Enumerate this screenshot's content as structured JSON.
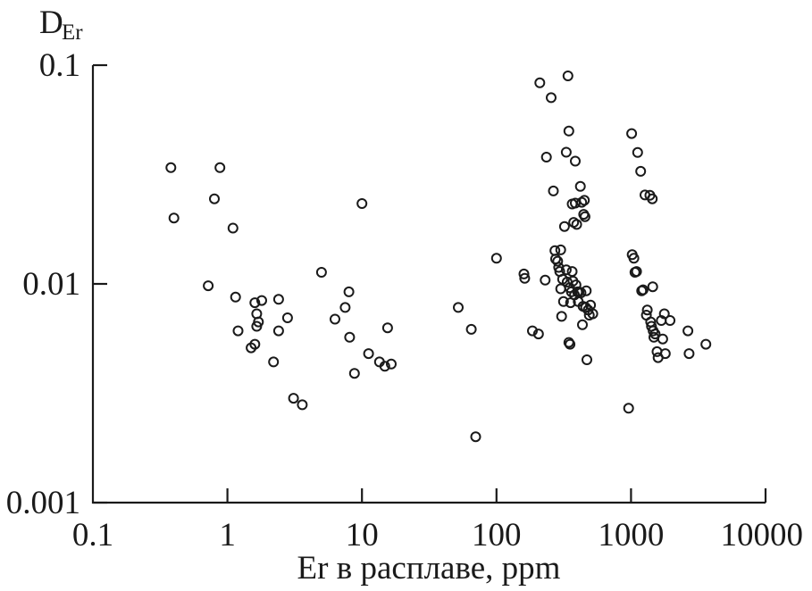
{
  "chart_data": {
    "type": "scatter",
    "title": "",
    "ylabel_main": "D",
    "ylabel_sub": "Er",
    "xlabel": "Er в расплаве, ppm",
    "x_scale": "log",
    "y_scale": "log",
    "xlim": [
      0.1,
      10000
    ],
    "ylim": [
      0.001,
      0.1
    ],
    "x_ticks": [
      0.1,
      1,
      10,
      100,
      1000,
      10000
    ],
    "x_tick_labels": [
      "0.1",
      "1",
      "10",
      "100",
      "1000",
      "10000"
    ],
    "y_ticks": [
      0.001,
      0.01,
      0.1
    ],
    "y_tick_labels": [
      "0.001",
      "0.01",
      "0.1"
    ],
    "grid": false,
    "legend": "none",
    "marker": "open-circle",
    "color": "#1a1a1a",
    "points": [
      [
        0.38,
        0.034
      ],
      [
        0.4,
        0.02
      ],
      [
        0.72,
        0.0098
      ],
      [
        0.8,
        0.0245
      ],
      [
        0.88,
        0.034
      ],
      [
        1.1,
        0.018
      ],
      [
        1.15,
        0.0087
      ],
      [
        1.2,
        0.0061
      ],
      [
        1.5,
        0.0051
      ],
      [
        1.6,
        0.0082
      ],
      [
        1.6,
        0.0053
      ],
      [
        1.65,
        0.0073
      ],
      [
        1.65,
        0.0064
      ],
      [
        1.7,
        0.0067
      ],
      [
        1.8,
        0.0084
      ],
      [
        2.2,
        0.0044
      ],
      [
        2.4,
        0.0085
      ],
      [
        2.4,
        0.0061
      ],
      [
        2.8,
        0.007
      ],
      [
        3.1,
        0.003
      ],
      [
        3.6,
        0.0028
      ],
      [
        5.0,
        0.0113
      ],
      [
        6.3,
        0.0069
      ],
      [
        7.5,
        0.0078
      ],
      [
        8.0,
        0.0092
      ],
      [
        8.1,
        0.0057
      ],
      [
        8.8,
        0.0039
      ],
      [
        10.0,
        0.0233
      ],
      [
        11.2,
        0.0048
      ],
      [
        13.5,
        0.0044
      ],
      [
        14.8,
        0.0042
      ],
      [
        15.5,
        0.0063
      ],
      [
        16.5,
        0.0043
      ],
      [
        52,
        0.0078
      ],
      [
        65,
        0.0062
      ],
      [
        70,
        0.002
      ],
      [
        100,
        0.0131
      ],
      [
        160,
        0.0111
      ],
      [
        162,
        0.0106
      ],
      [
        185,
        0.0061
      ],
      [
        205,
        0.0059
      ],
      [
        210,
        0.083
      ],
      [
        230,
        0.0104
      ],
      [
        235,
        0.038
      ],
      [
        255,
        0.071
      ],
      [
        265,
        0.0266
      ],
      [
        272,
        0.0142
      ],
      [
        275,
        0.013
      ],
      [
        285,
        0.0127
      ],
      [
        290,
        0.0119
      ],
      [
        295,
        0.0114
      ],
      [
        300,
        0.0143
      ],
      [
        300,
        0.0095
      ],
      [
        305,
        0.0071
      ],
      [
        310,
        0.0105
      ],
      [
        315,
        0.0083
      ],
      [
        320,
        0.0183
      ],
      [
        330,
        0.04
      ],
      [
        330,
        0.0116
      ],
      [
        335,
        0.0102
      ],
      [
        340,
        0.0893
      ],
      [
        345,
        0.05
      ],
      [
        345,
        0.0054
      ],
      [
        350,
        0.0096
      ],
      [
        352,
        0.0053
      ],
      [
        355,
        0.0082
      ],
      [
        360,
        0.0092
      ],
      [
        365,
        0.0232
      ],
      [
        365,
        0.0114
      ],
      [
        370,
        0.0103
      ],
      [
        375,
        0.0191
      ],
      [
        380,
        0.0089
      ],
      [
        385,
        0.0364
      ],
      [
        385,
        0.0234
      ],
      [
        390,
        0.0099
      ],
      [
        395,
        0.0187
      ],
      [
        400,
        0.0092
      ],
      [
        405,
        0.0083
      ],
      [
        410,
        0.0092
      ],
      [
        420,
        0.0279
      ],
      [
        425,
        0.0091
      ],
      [
        430,
        0.0236
      ],
      [
        435,
        0.0065
      ],
      [
        440,
        0.0079
      ],
      [
        445,
        0.0208
      ],
      [
        450,
        0.0241
      ],
      [
        455,
        0.0203
      ],
      [
        460,
        0.0078
      ],
      [
        465,
        0.0093
      ],
      [
        470,
        0.0045
      ],
      [
        480,
        0.0076
      ],
      [
        490,
        0.0072
      ],
      [
        500,
        0.008
      ],
      [
        520,
        0.0073
      ],
      [
        960,
        0.0027
      ],
      [
        1010,
        0.0487
      ],
      [
        1020,
        0.0136
      ],
      [
        1050,
        0.0131
      ],
      [
        1070,
        0.0113
      ],
      [
        1100,
        0.0114
      ],
      [
        1120,
        0.0399
      ],
      [
        1180,
        0.0327
      ],
      [
        1200,
        0.0093
      ],
      [
        1230,
        0.0094
      ],
      [
        1270,
        0.0255
      ],
      [
        1300,
        0.0072
      ],
      [
        1320,
        0.0076
      ],
      [
        1380,
        0.0254
      ],
      [
        1400,
        0.0067
      ],
      [
        1420,
        0.0064
      ],
      [
        1440,
        0.0245
      ],
      [
        1450,
        0.0097
      ],
      [
        1460,
        0.0061
      ],
      [
        1480,
        0.0057
      ],
      [
        1510,
        0.0059
      ],
      [
        1560,
        0.0049
      ],
      [
        1590,
        0.0046
      ],
      [
        1680,
        0.0068
      ],
      [
        1720,
        0.0056
      ],
      [
        1770,
        0.0073
      ],
      [
        1800,
        0.0048
      ],
      [
        1950,
        0.0068
      ],
      [
        2650,
        0.0061
      ],
      [
        2700,
        0.0048
      ],
      [
        3600,
        0.0053
      ]
    ]
  }
}
